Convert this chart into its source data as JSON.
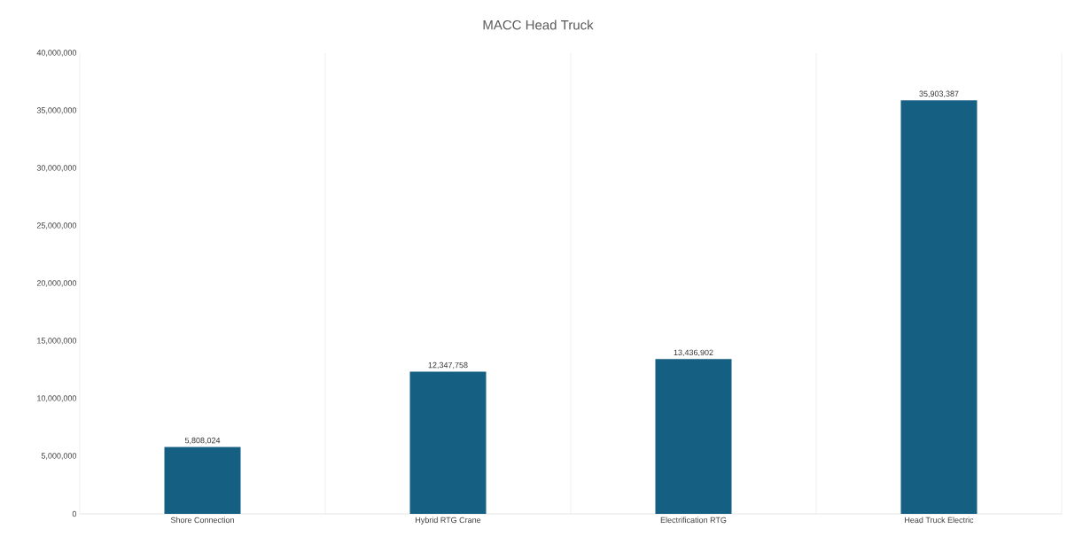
{
  "chart_data": {
    "type": "bar",
    "title": "MACC Head Truck",
    "categories": [
      "Shore Connection",
      "Hybrid RTG Crane",
      "Electrification RTG",
      "Head Truck Electric"
    ],
    "values": [
      5808024,
      12347758,
      13436902,
      35903387
    ],
    "value_labels": [
      "5,808,024",
      "12,347,758",
      "13,436,902",
      "35,903,387"
    ],
    "color": "#155f82",
    "ylim": [
      0,
      40000000
    ],
    "yticks": [
      {
        "value": 0,
        "label": "0"
      },
      {
        "value": 5000000,
        "label": "5,000,000"
      },
      {
        "value": 10000000,
        "label": "10,000,000"
      },
      {
        "value": 15000000,
        "label": "15,000,000"
      },
      {
        "value": 20000000,
        "label": "20,000,000"
      },
      {
        "value": 25000000,
        "label": "25,000,000"
      },
      {
        "value": 30000000,
        "label": "30,000,000"
      },
      {
        "value": 35000000,
        "label": "35,000,000"
      },
      {
        "value": 40000000,
        "label": "40,000,000"
      }
    ],
    "grid": "x"
  }
}
